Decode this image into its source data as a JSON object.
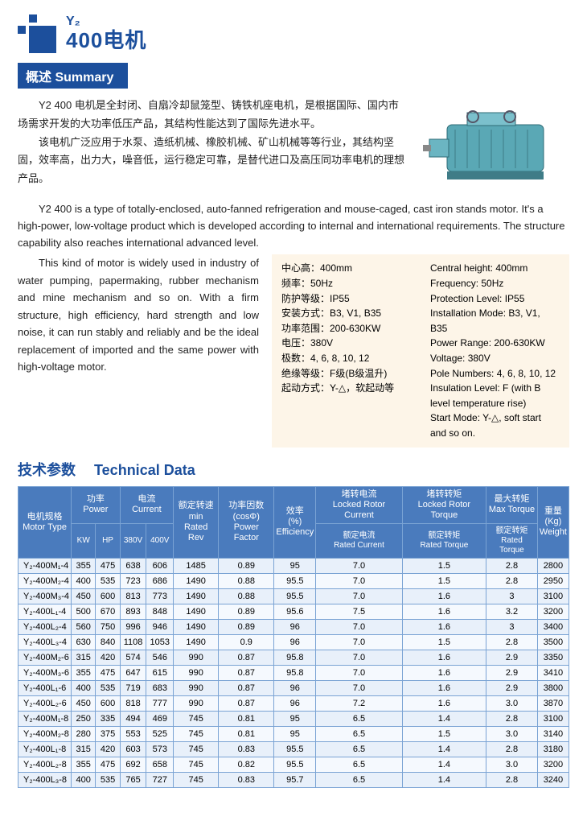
{
  "header": {
    "small": "Y₂",
    "big": "400电机",
    "logo_color": "#1c4f9c"
  },
  "summary_bar": "概述 Summary",
  "intro_cn_p1": "Y2 400 电机是全封闭、自扇冷却鼠笼型、铸铁机座电机，是根据国际、国内市场需求开发的大功率低压产品，其结构性能达到了国际先进水平。",
  "intro_cn_p2": "该电机广泛应用于水泵、造纸机械、橡胶机械、矿山机械等等行业，其结构坚固，效率高，出力大，噪音低，运行稳定可靠，是替代进口及高压同功率电机的理想产品。",
  "intro_en_p1": "Y2 400 is a type of totally-enclosed, auto-fanned refrigeration and mouse-caged, cast iron stands motor. It's a high-power, low-voltage product which is developed according to internal and international requirements. The structure capability also reaches international advanced level.",
  "intro_en_p2": "This kind of motor is widely used in industry of water pumping, papermaking, rubber mechanism and mine mechanism and so on. With a firm structure, high efficiency, hard strength and low noise, it can run stably and reliably and be the ideal replacement of imported and the same power with high-voltage motor.",
  "specs_cn": [
    "中心高：400mm",
    "频率：50Hz",
    "防护等级：IP55",
    "安装方式：B3, V1, B35",
    "功率范围：200-630KW",
    "电压：380V",
    "极数：4, 6, 8, 10, 12",
    "绝缘等级：F级(B级温升)",
    "起动方式：Y-△，软起动等"
  ],
  "specs_en": [
    "Central height: 400mm",
    "Frequency: 50Hz",
    "Protection Level: IP55",
    "Installation Mode: B3, V1, B35",
    "Power Range: 200-630KW",
    "Voltage: 380V",
    "Pole Numbers: 4, 6, 8, 10, 12",
    "Insulation Level: F (with B level temperature rise)",
    "Start Mode: Y-△, soft start and so on."
  ],
  "spec_box_bg": "#fdf5e8",
  "tech_title_cn": "技术参数",
  "tech_title_en": "Technical Data",
  "table": {
    "header_bg": "#4a7bbd",
    "header_fg": "#ffffff",
    "border_color": "#7aa3d4",
    "row_odd_bg": "#e8f0fa",
    "row_even_bg": "#f5f9fe",
    "headers_row1": {
      "motor_type": "电机规格\nMotor Type",
      "power": "功率 Power",
      "current": "电流 Current",
      "rated_rev": "额定转速\nmin\nRated Rev",
      "power_factor": "功率因数\n(cosΦ)\nPower Factor",
      "efficiency": "效率\n(%)\nEfficiency",
      "locked_current": "堵转电流\nLocked Rotor Current",
      "locked_torque": "堵转转矩\nLocked Rotor Torque",
      "max_torque": "最大转矩\nMax Torque",
      "weight": "重量\n(Kg)\nWeight"
    },
    "headers_row2": {
      "kw": "KW",
      "hp": "HP",
      "v380": "380V",
      "v400": "400V",
      "rated_current": "额定电流\nRated Current",
      "rated_torque1": "额定转矩\nRated Torque",
      "rated_torque2": "额定转矩\nRated Torque"
    },
    "rows": [
      [
        "Y₂-400M₁-4",
        "355",
        "475",
        "638",
        "606",
        "1485",
        "0.89",
        "95",
        "7.0",
        "1.5",
        "2.8",
        "2800"
      ],
      [
        "Y₂-400M₂-4",
        "400",
        "535",
        "723",
        "686",
        "1490",
        "0.88",
        "95.5",
        "7.0",
        "1.5",
        "2.8",
        "2950"
      ],
      [
        "Y₂-400M₃-4",
        "450",
        "600",
        "813",
        "773",
        "1490",
        "0.88",
        "95.5",
        "7.0",
        "1.6",
        "3",
        "3100"
      ],
      [
        "Y₂-400L₁-4",
        "500",
        "670",
        "893",
        "848",
        "1490",
        "0.89",
        "95.6",
        "7.5",
        "1.6",
        "3.2",
        "3200"
      ],
      [
        "Y₂-400L₂-4",
        "560",
        "750",
        "996",
        "946",
        "1490",
        "0.89",
        "96",
        "7.0",
        "1.6",
        "3",
        "3400"
      ],
      [
        "Y₂-400L₃-4",
        "630",
        "840",
        "1108",
        "1053",
        "1490",
        "0.9",
        "96",
        "7.0",
        "1.5",
        "2.8",
        "3500"
      ],
      [
        "Y₂-400M₂-6",
        "315",
        "420",
        "574",
        "546",
        "990",
        "0.87",
        "95.8",
        "7.0",
        "1.6",
        "2.9",
        "3350"
      ],
      [
        "Y₂-400M₃-6",
        "355",
        "475",
        "647",
        "615",
        "990",
        "0.87",
        "95.8",
        "7.0",
        "1.6",
        "2.9",
        "3410"
      ],
      [
        "Y₂-400L₁-6",
        "400",
        "535",
        "719",
        "683",
        "990",
        "0.87",
        "96",
        "7.0",
        "1.6",
        "2.9",
        "3800"
      ],
      [
        "Y₂-400L₂-6",
        "450",
        "600",
        "818",
        "777",
        "990",
        "0.87",
        "96",
        "7.2",
        "1.6",
        "3.0",
        "3870"
      ],
      [
        "Y₂-400M₁-8",
        "250",
        "335",
        "494",
        "469",
        "745",
        "0.81",
        "95",
        "6.5",
        "1.4",
        "2.8",
        "3100"
      ],
      [
        "Y₂-400M₂-8",
        "280",
        "375",
        "553",
        "525",
        "745",
        "0.81",
        "95",
        "6.5",
        "1.5",
        "3.0",
        "3140"
      ],
      [
        "Y₂-400L₁-8",
        "315",
        "420",
        "603",
        "573",
        "745",
        "0.83",
        "95.5",
        "6.5",
        "1.4",
        "2.8",
        "3180"
      ],
      [
        "Y₂-400L₂-8",
        "355",
        "475",
        "692",
        "658",
        "745",
        "0.82",
        "95.5",
        "6.5",
        "1.4",
        "3.0",
        "3200"
      ],
      [
        "Y₂-400L₃-8",
        "400",
        "535",
        "765",
        "727",
        "745",
        "0.83",
        "95.7",
        "6.5",
        "1.4",
        "2.8",
        "3240"
      ]
    ]
  },
  "motor_color": "#5aa8b5"
}
